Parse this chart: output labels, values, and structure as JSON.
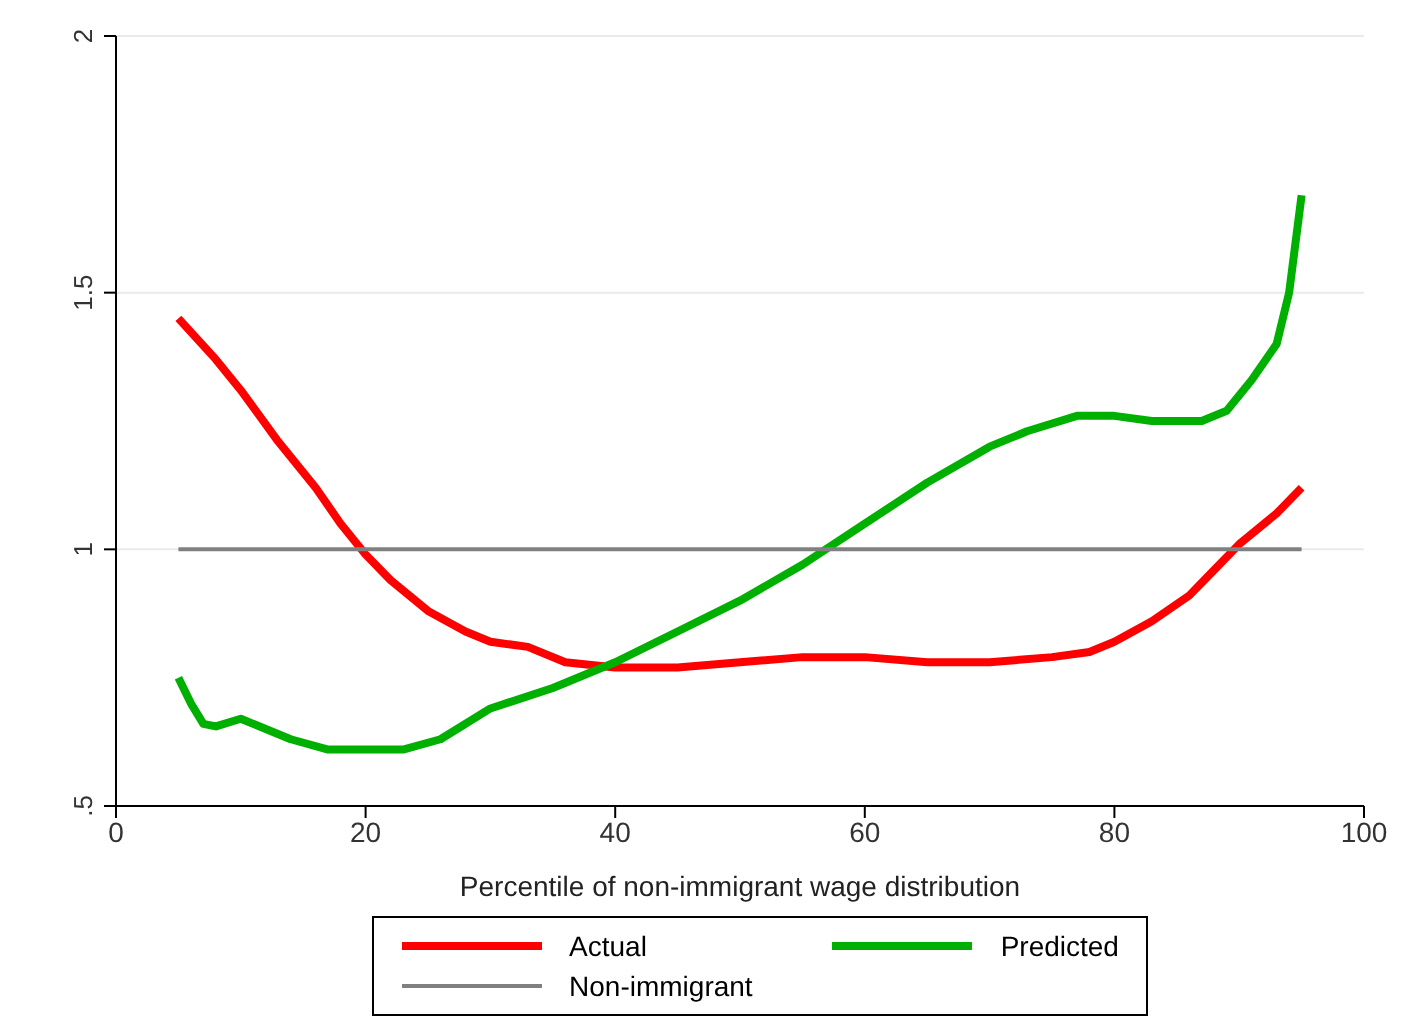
{
  "chart_data": {
    "type": "line",
    "xlabel": "Percentile of non-immigrant  wage distribution",
    "xlim": [
      0,
      100
    ],
    "xticks": [
      0,
      20,
      40,
      60,
      80,
      100
    ],
    "ylim": [
      0.5,
      2
    ],
    "yticks": [
      {
        "value": 0.5,
        "label": ".5"
      },
      1,
      1.5,
      2
    ],
    "grid": "y",
    "legend": "bottom",
    "marker": "none",
    "line_style": "solid",
    "series": [
      {
        "name": "Actual",
        "color": "#ff0000",
        "x": [
          5,
          8,
          10,
          13,
          16,
          18,
          20,
          22,
          25,
          28,
          30,
          33,
          36,
          40,
          45,
          50,
          55,
          60,
          65,
          70,
          75,
          78,
          80,
          83,
          86,
          88,
          90,
          93,
          95
        ],
        "values": [
          1.45,
          1.37,
          1.31,
          1.21,
          1.12,
          1.05,
          0.99,
          0.94,
          0.88,
          0.84,
          0.82,
          0.81,
          0.78,
          0.77,
          0.77,
          0.78,
          0.79,
          0.79,
          0.78,
          0.78,
          0.79,
          0.8,
          0.82,
          0.86,
          0.91,
          0.96,
          1.01,
          1.07,
          1.12
        ]
      },
      {
        "name": "Predicted",
        "color": "#00b000",
        "x": [
          5,
          6,
          7,
          8,
          10,
          12,
          14,
          17,
          20,
          23,
          26,
          30,
          35,
          40,
          45,
          50,
          55,
          60,
          65,
          70,
          73,
          77,
          80,
          83,
          87,
          89,
          91,
          93,
          94,
          95
        ],
        "values": [
          0.75,
          0.7,
          0.66,
          0.655,
          0.67,
          0.65,
          0.63,
          0.61,
          0.61,
          0.61,
          0.63,
          0.69,
          0.73,
          0.78,
          0.84,
          0.9,
          0.97,
          1.05,
          1.13,
          1.2,
          1.23,
          1.26,
          1.26,
          1.25,
          1.25,
          1.27,
          1.33,
          1.4,
          1.5,
          1.69
        ]
      },
      {
        "name": "Non-immigrant",
        "color": "#808080",
        "x": [
          5,
          95
        ],
        "values": [
          1,
          1
        ]
      }
    ]
  }
}
